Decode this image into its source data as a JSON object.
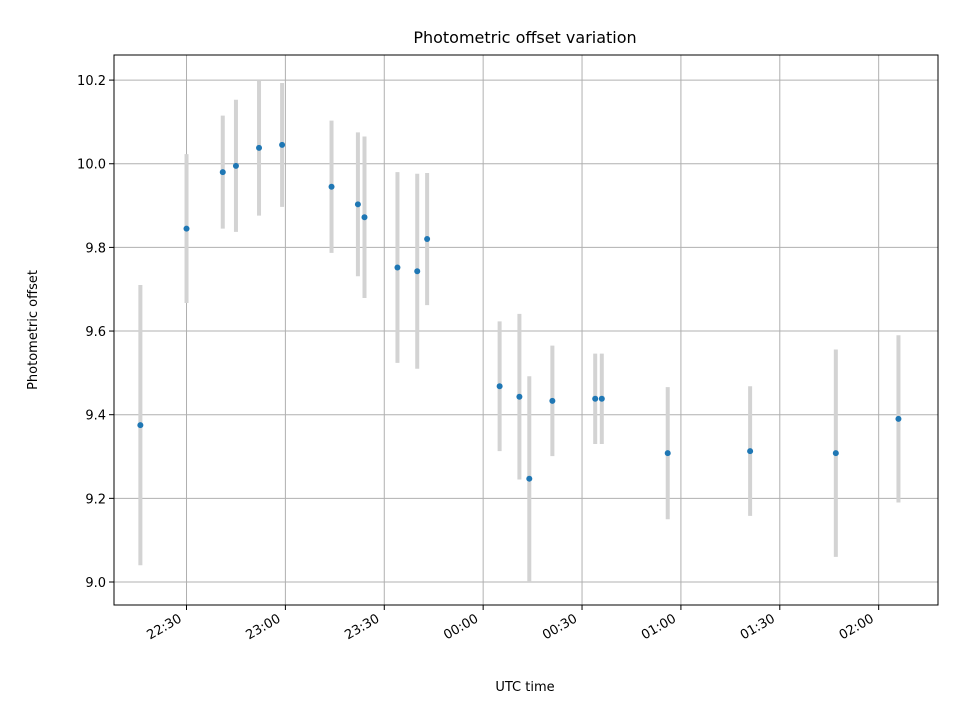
{
  "chart_data": {
    "type": "scatter",
    "title": "Photometric offset variation",
    "xlabel": "UTC time",
    "ylabel": "Photometric offset",
    "x_unit": "UTC time (hh:mm)",
    "xlim": [
      "22:08",
      "02:18"
    ],
    "ylim": [
      8.945,
      10.26
    ],
    "grid": true,
    "x_ticks": [
      "22:30",
      "23:00",
      "23:30",
      "00:00",
      "00:30",
      "01:00",
      "01:30",
      "02:00"
    ],
    "y_ticks": [
      "9.0",
      "9.2",
      "9.4",
      "9.6",
      "9.8",
      "10.0",
      "10.2"
    ],
    "points": [
      {
        "x": "22:16",
        "y": 9.375,
        "yerr": 0.335
      },
      {
        "x": "22:30",
        "y": 9.845,
        "yerr": 0.178
      },
      {
        "x": "22:41",
        "y": 9.98,
        "yerr": 0.135
      },
      {
        "x": "22:45",
        "y": 9.995,
        "yerr": 0.158
      },
      {
        "x": "22:52",
        "y": 10.038,
        "yerr": 0.162
      },
      {
        "x": "22:59",
        "y": 10.045,
        "yerr": 0.148
      },
      {
        "x": "23:14",
        "y": 9.945,
        "yerr": 0.158
      },
      {
        "x": "23:22",
        "y": 9.903,
        "yerr": 0.172
      },
      {
        "x": "23:24",
        "y": 9.872,
        "yerr": 0.193
      },
      {
        "x": "23:34",
        "y": 9.752,
        "yerr": 0.228
      },
      {
        "x": "23:40",
        "y": 9.743,
        "yerr": 0.233
      },
      {
        "x": "23:43",
        "y": 9.82,
        "yerr": 0.158
      },
      {
        "x": "00:05",
        "y": 9.468,
        "yerr": 0.155
      },
      {
        "x": "00:11",
        "y": 9.443,
        "yerr": 0.198
      },
      {
        "x": "00:14",
        "y": 9.247,
        "yerr": 0.245
      },
      {
        "x": "00:21",
        "y": 9.433,
        "yerr": 0.132
      },
      {
        "x": "00:34",
        "y": 9.438,
        "yerr": 0.108
      },
      {
        "x": "00:36",
        "y": 9.438,
        "yerr": 0.108
      },
      {
        "x": "00:56",
        "y": 9.308,
        "yerr": 0.158
      },
      {
        "x": "01:21",
        "y": 9.313,
        "yerr": 0.155
      },
      {
        "x": "01:47",
        "y": 9.308,
        "yerr": 0.248
      },
      {
        "x": "02:06",
        "y": 9.39,
        "yerr": 0.2
      }
    ],
    "colors": {
      "point": "#1f77b4",
      "errorbar": "#d3d3d3",
      "grid": "#b0b0b0",
      "axes": "#000000"
    }
  }
}
